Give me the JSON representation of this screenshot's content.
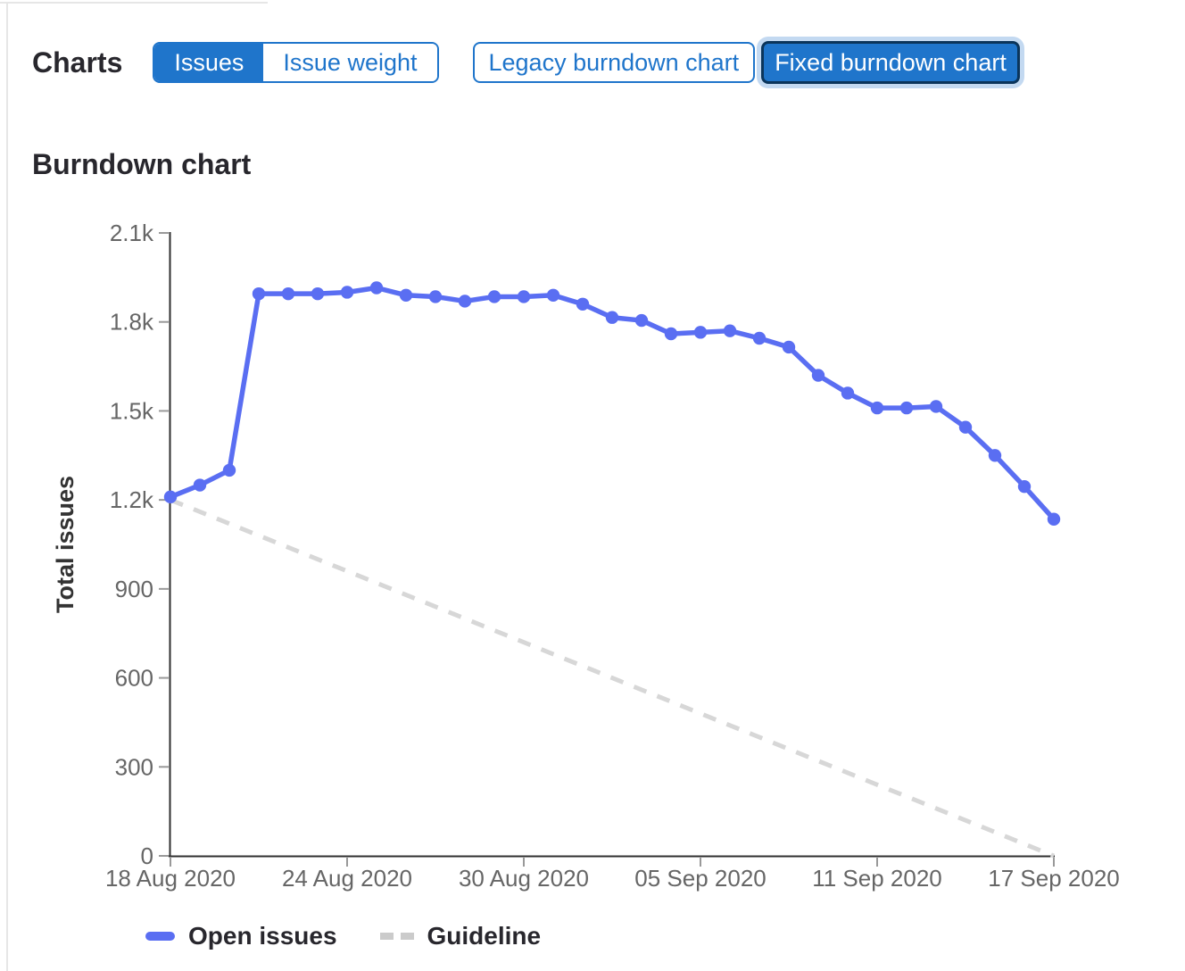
{
  "header": {
    "title": "Charts",
    "issue_toggle": {
      "options": [
        {
          "label": "Issues",
          "selected": true
        },
        {
          "label": "Issue weight",
          "selected": false
        }
      ]
    },
    "version_toggle": {
      "options": [
        {
          "label": "Legacy burndown chart",
          "selected": false
        },
        {
          "label": "Fixed burndown chart",
          "selected": true,
          "focused": true
        }
      ]
    }
  },
  "section_title": "Burndown chart",
  "colors": {
    "accent_blue": "#1f75cb",
    "selected_border": "#0b355b",
    "focus_ring": "#c3d9f1",
    "line_blue": "#5a6ef2",
    "guideline_gray": "#d7d7d7",
    "axis_line": "#2f2f2f",
    "tick_gray": "#999999",
    "axis_text": "#666666",
    "heading_text": "#28272d"
  },
  "legend": {
    "items": [
      {
        "label": "Open issues",
        "swatch": "solid-line"
      },
      {
        "label": "Guideline",
        "swatch": "dashed-line"
      }
    ]
  },
  "chart_data": {
    "type": "line",
    "title": "Burndown chart",
    "xlabel": "",
    "ylabel": "Total issues",
    "ylim": [
      0,
      2100
    ],
    "grid": false,
    "legend_position": "bottom-left",
    "y_ticks": [
      0,
      300,
      600,
      900,
      1200,
      1500,
      1800,
      2100
    ],
    "y_tick_labels": [
      "0",
      "300",
      "600",
      "900",
      "1.2k",
      "1.5k",
      "1.8k",
      "2.1k"
    ],
    "x": [
      "18 Aug 2020",
      "19 Aug 2020",
      "20 Aug 2020",
      "21 Aug 2020",
      "22 Aug 2020",
      "23 Aug 2020",
      "24 Aug 2020",
      "25 Aug 2020",
      "26 Aug 2020",
      "27 Aug 2020",
      "28 Aug 2020",
      "29 Aug 2020",
      "30 Aug 2020",
      "31 Aug 2020",
      "01 Sep 2020",
      "02 Sep 2020",
      "03 Sep 2020",
      "04 Sep 2020",
      "05 Sep 2020",
      "06 Sep 2020",
      "07 Sep 2020",
      "08 Sep 2020",
      "09 Sep 2020",
      "10 Sep 2020",
      "11 Sep 2020",
      "12 Sep 2020",
      "13 Sep 2020",
      "14 Sep 2020",
      "15 Sep 2020",
      "16 Sep 2020",
      "17 Sep 2020"
    ],
    "x_tick_labels": [
      "18 Aug 2020",
      "24 Aug 2020",
      "30 Aug 2020",
      "05 Sep 2020",
      "11 Sep 2020",
      "17 Sep 2020"
    ],
    "x_tick_indices": [
      0,
      6,
      12,
      18,
      24,
      30
    ],
    "series": [
      {
        "name": "Open issues",
        "type": "line",
        "style": "solid",
        "color": "#5a6ef2",
        "values": [
          1210,
          1250,
          1300,
          1895,
          1895,
          1895,
          1900,
          1915,
          1890,
          1885,
          1870,
          1885,
          1885,
          1890,
          1860,
          1815,
          1805,
          1760,
          1765,
          1770,
          1745,
          1715,
          1620,
          1560,
          1510,
          1510,
          1515,
          1445,
          1350,
          1245,
          1135
        ]
      },
      {
        "name": "Guideline",
        "type": "line",
        "style": "dashed",
        "color": "#d7d7d7",
        "points": [
          {
            "x": "18 Aug 2020",
            "y": 1200
          },
          {
            "x": "17 Sep 2020",
            "y": 0
          }
        ]
      }
    ]
  }
}
